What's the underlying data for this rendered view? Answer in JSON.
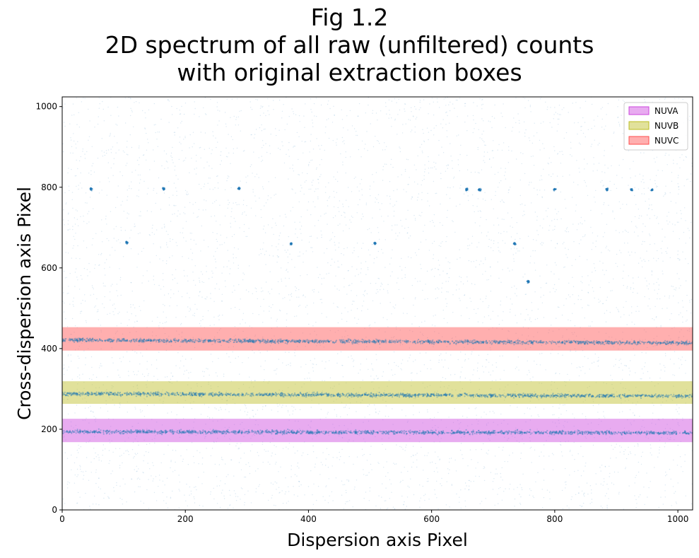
{
  "figure": {
    "title_lines": [
      "Fig 1.2",
      "2D spectrum of all raw (unfiltered) counts",
      "with original extraction boxes"
    ]
  },
  "chart_data": {
    "type": "scatter",
    "title": "Fig 1.2\n2D spectrum of all raw (unfiltered) counts\nwith original extraction boxes",
    "xlabel": "Dispersion axis Pixel",
    "ylabel": "Cross-dispersion axis Pixel",
    "xlim": [
      0,
      1024
    ],
    "ylim": [
      0,
      1024
    ],
    "xticks": [
      0,
      200,
      400,
      600,
      800,
      1000
    ],
    "yticks": [
      0,
      200,
      400,
      600,
      800,
      1000
    ],
    "point_color": "#1f77b4",
    "background_counts": "sparse uniform raw counts across the detector",
    "traces": [
      {
        "name": "NUVA",
        "y_start": 194,
        "y_end": 191
      },
      {
        "name": "NUVB",
        "y_start": 288,
        "y_end": 282
      },
      {
        "name": "NUVC",
        "y_start": 421,
        "y_end": 414
      }
    ],
    "extraction_boxes": [
      {
        "name": "NUVA",
        "y_min": 168,
        "y_max": 226,
        "color": "#cc44dd"
      },
      {
        "name": "NUVB",
        "y_min": 263,
        "y_max": 319,
        "color": "#bcbd22"
      },
      {
        "name": "NUVC",
        "y_min": 395,
        "y_max": 453,
        "color": "#ff4d4d"
      }
    ],
    "hot_spots": [
      {
        "x": 47,
        "y": 796
      },
      {
        "x": 165,
        "y": 796
      },
      {
        "x": 287,
        "y": 797
      },
      {
        "x": 657,
        "y": 794
      },
      {
        "x": 678,
        "y": 794
      },
      {
        "x": 800,
        "y": 795
      },
      {
        "x": 885,
        "y": 794
      },
      {
        "x": 925,
        "y": 794
      },
      {
        "x": 958,
        "y": 793
      },
      {
        "x": 105,
        "y": 663
      },
      {
        "x": 372,
        "y": 660
      },
      {
        "x": 508,
        "y": 661
      },
      {
        "x": 735,
        "y": 660
      },
      {
        "x": 757,
        "y": 566
      }
    ],
    "legend": {
      "placement": "top-right",
      "entries": [
        "NUVA",
        "NUVB",
        "NUVC"
      ]
    }
  }
}
